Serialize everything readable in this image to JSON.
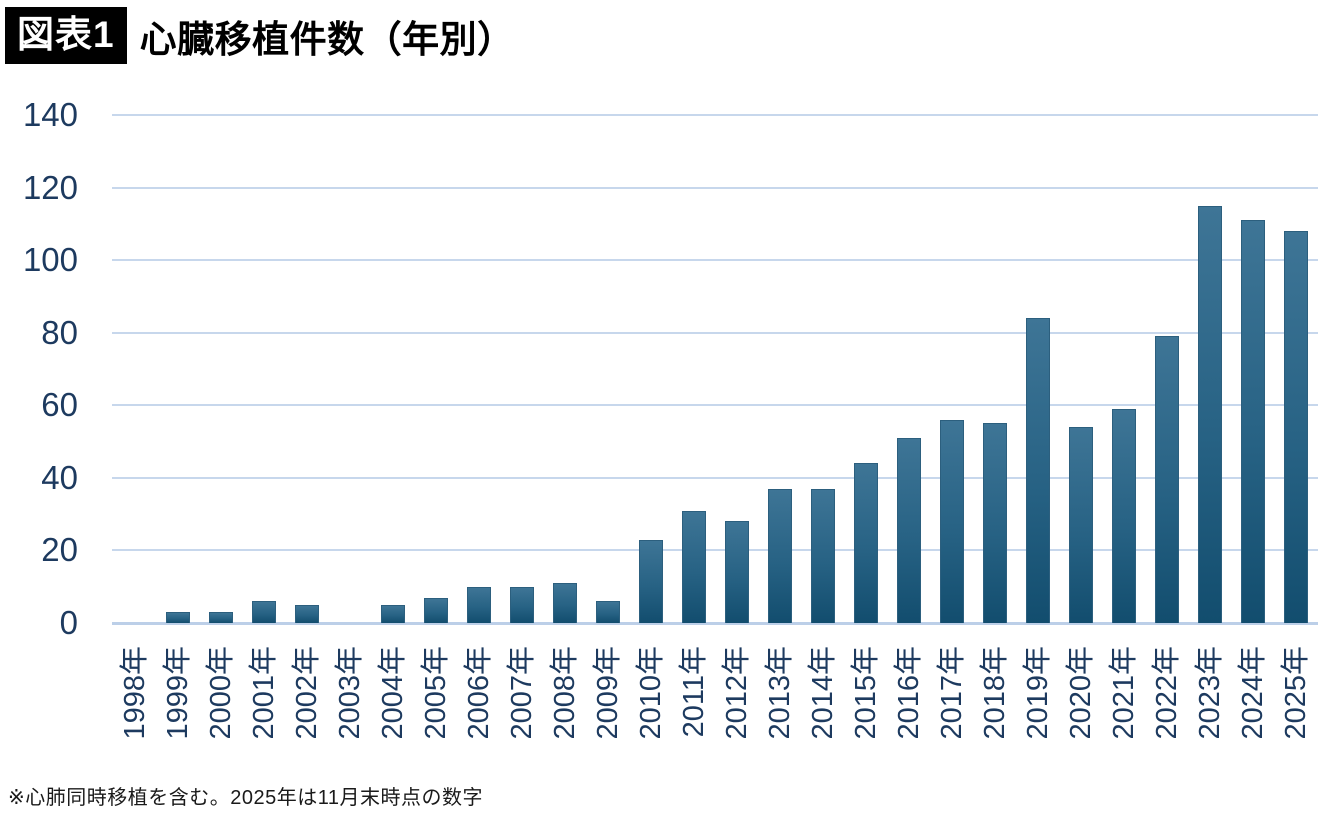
{
  "header": {
    "badge": "図表1",
    "title": "心臓移植件数（年別）"
  },
  "chart_data": {
    "type": "bar",
    "title": "心臓移植件数（年別）",
    "categories": [
      "1998年",
      "1999年",
      "2000年",
      "2001年",
      "2002年",
      "2003年",
      "2004年",
      "2005年",
      "2006年",
      "2007年",
      "2008年",
      "2009年",
      "2010年",
      "2011年",
      "2012年",
      "2013年",
      "2014年",
      "2015年",
      "2016年",
      "2017年",
      "2018年",
      "2019年",
      "2020年",
      "2021年",
      "2022年",
      "2023年",
      "2024年",
      "2025年"
    ],
    "values": [
      0,
      3,
      3,
      6,
      5,
      0,
      5,
      7,
      10,
      10,
      11,
      6,
      23,
      31,
      28,
      37,
      37,
      44,
      51,
      56,
      55,
      84,
      54,
      59,
      79,
      115,
      111,
      108
    ],
    "xlabel": "",
    "ylabel": "",
    "ylim": [
      0,
      140
    ],
    "yticks": [
      0,
      20,
      40,
      60,
      80,
      100,
      120,
      140
    ],
    "grid": "horizontal",
    "legend": "none",
    "colors": {
      "bar_top": "#3e7596",
      "bar_mid": "#276284",
      "bar_bottom": "#124d6e",
      "bar_border": "#2c5f7e",
      "tick_label": "#1d3a5f",
      "gridline": "#c7d7ec",
      "baseline": "#bccfe8"
    }
  },
  "footnote": "※心肺同時移植を含む。2025年は11月末時点の数字"
}
